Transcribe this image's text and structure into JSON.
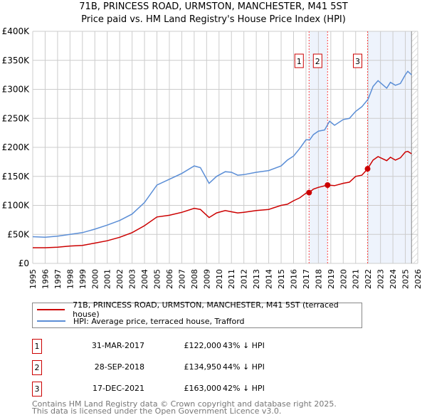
{
  "chart_data": {
    "type": "line",
    "title": "71B, PRINCESS ROAD, URMSTON, MANCHESTER, M41 5ST",
    "subtitle": "Price paid vs. HM Land Registry's House Price Index (HPI)",
    "xlim": [
      1995,
      2026
    ],
    "ylim": [
      0,
      400000
    ],
    "y_ticks": [
      0,
      50000,
      100000,
      150000,
      200000,
      250000,
      300000,
      350000,
      400000
    ],
    "y_tick_labels": [
      "£0",
      "£50K",
      "£100K",
      "£150K",
      "£200K",
      "£250K",
      "£300K",
      "£350K",
      "£400K"
    ],
    "x_ticks": [
      1995,
      1996,
      1997,
      1998,
      1999,
      2000,
      2001,
      2002,
      2003,
      2004,
      2005,
      2006,
      2007,
      2008,
      2009,
      2010,
      2011,
      2012,
      2013,
      2014,
      2015,
      2016,
      2017,
      2018,
      2019,
      2020,
      2021,
      2022,
      2023,
      2024,
      2025,
      2026
    ],
    "grid": true,
    "series": [
      {
        "name": "71B, PRINCESS ROAD, URMSTON, MANCHESTER, M41 5ST (terraced house)",
        "color": "#cc0000",
        "x": [
          1995,
          1996,
          1997,
          1998,
          1999,
          2000,
          2001,
          2002,
          2003,
          2004,
          2005,
          2006,
          2007,
          2008,
          2008.5,
          2009.2,
          2009.8,
          2010.5,
          2011,
          2011.5,
          2012,
          2013,
          2014,
          2015,
          2015.5,
          2016,
          2016.5,
          2017,
          2017.25,
          2017.6,
          2018,
          2018.74,
          2019.3,
          2020,
          2020.5,
          2021,
          2021.5,
          2021.96,
          2022.4,
          2022.8,
          2023.5,
          2023.8,
          2024.2,
          2024.6,
          2025,
          2025.2,
          2025.5
        ],
        "y": [
          27000,
          27000,
          28000,
          30000,
          31000,
          35000,
          39000,
          45000,
          53000,
          65000,
          80000,
          83000,
          88000,
          95000,
          93000,
          79000,
          87000,
          91000,
          89000,
          87000,
          88000,
          91000,
          93000,
          100000,
          102000,
          108000,
          113000,
          121000,
          122000,
          128000,
          131000,
          134950,
          134000,
          138000,
          140000,
          150000,
          152000,
          163000,
          178000,
          184000,
          177000,
          183000,
          178000,
          182000,
          192000,
          193000,
          189000
        ]
      },
      {
        "name": "HPI: Average price, terraced house, Trafford",
        "color": "#5b8ed6",
        "x": [
          1995,
          1996,
          1997,
          1998,
          1999,
          2000,
          2001,
          2002,
          2003,
          2004,
          2005,
          2006,
          2007,
          2008,
          2008.5,
          2009.2,
          2009.8,
          2010.5,
          2011,
          2011.5,
          2012,
          2013,
          2014,
          2015,
          2015.5,
          2016,
          2016.5,
          2017,
          2017.3,
          2017.6,
          2018,
          2018.5,
          2018.9,
          2019.3,
          2020,
          2020.5,
          2021,
          2021.5,
          2022,
          2022.4,
          2022.8,
          2023.5,
          2023.8,
          2024.2,
          2024.6,
          2025,
          2025.2,
          2025.5
        ],
        "y": [
          46000,
          45000,
          47000,
          50000,
          53000,
          59000,
          66000,
          74000,
          85000,
          105000,
          135000,
          145000,
          155000,
          168000,
          165000,
          138000,
          150000,
          158000,
          157000,
          152000,
          153000,
          157000,
          160000,
          168000,
          178000,
          185000,
          198000,
          213000,
          213000,
          222000,
          228000,
          230000,
          245000,
          238000,
          248000,
          250000,
          262000,
          270000,
          283000,
          305000,
          315000,
          302000,
          312000,
          307000,
          310000,
          325000,
          331000,
          325000
        ]
      }
    ],
    "sales": [
      {
        "label": "1",
        "x": 2017.25,
        "y": 122000
      },
      {
        "label": "2",
        "x": 2018.74,
        "y": 134950
      },
      {
        "label": "3",
        "x": 2021.96,
        "y": 163000
      }
    ],
    "shaded_ranges": [
      [
        2017.25,
        2018.74
      ],
      [
        2021.96,
        2025.5
      ]
    ],
    "hatched_from": 2025.5,
    "legend_placement": "below"
  },
  "legend": {
    "red_label": "71B, PRINCESS ROAD, URMSTON, MANCHESTER, M41 5ST (terraced house)",
    "blue_label": "HPI: Average price, terraced house, Trafford"
  },
  "transactions": [
    {
      "num": "1",
      "date": "31-MAR-2017",
      "price": "£122,000",
      "hpi": "43% ↓ HPI"
    },
    {
      "num": "2",
      "date": "28-SEP-2018",
      "price": "£134,950",
      "hpi": "44% ↓ HPI"
    },
    {
      "num": "3",
      "date": "17-DEC-2021",
      "price": "£163,000",
      "hpi": "42% ↓ HPI"
    }
  ],
  "footer": {
    "line1": "Contains HM Land Registry data © Crown copyright and database right 2025.",
    "line2": "This data is licensed under the Open Government Licence v3.0."
  }
}
